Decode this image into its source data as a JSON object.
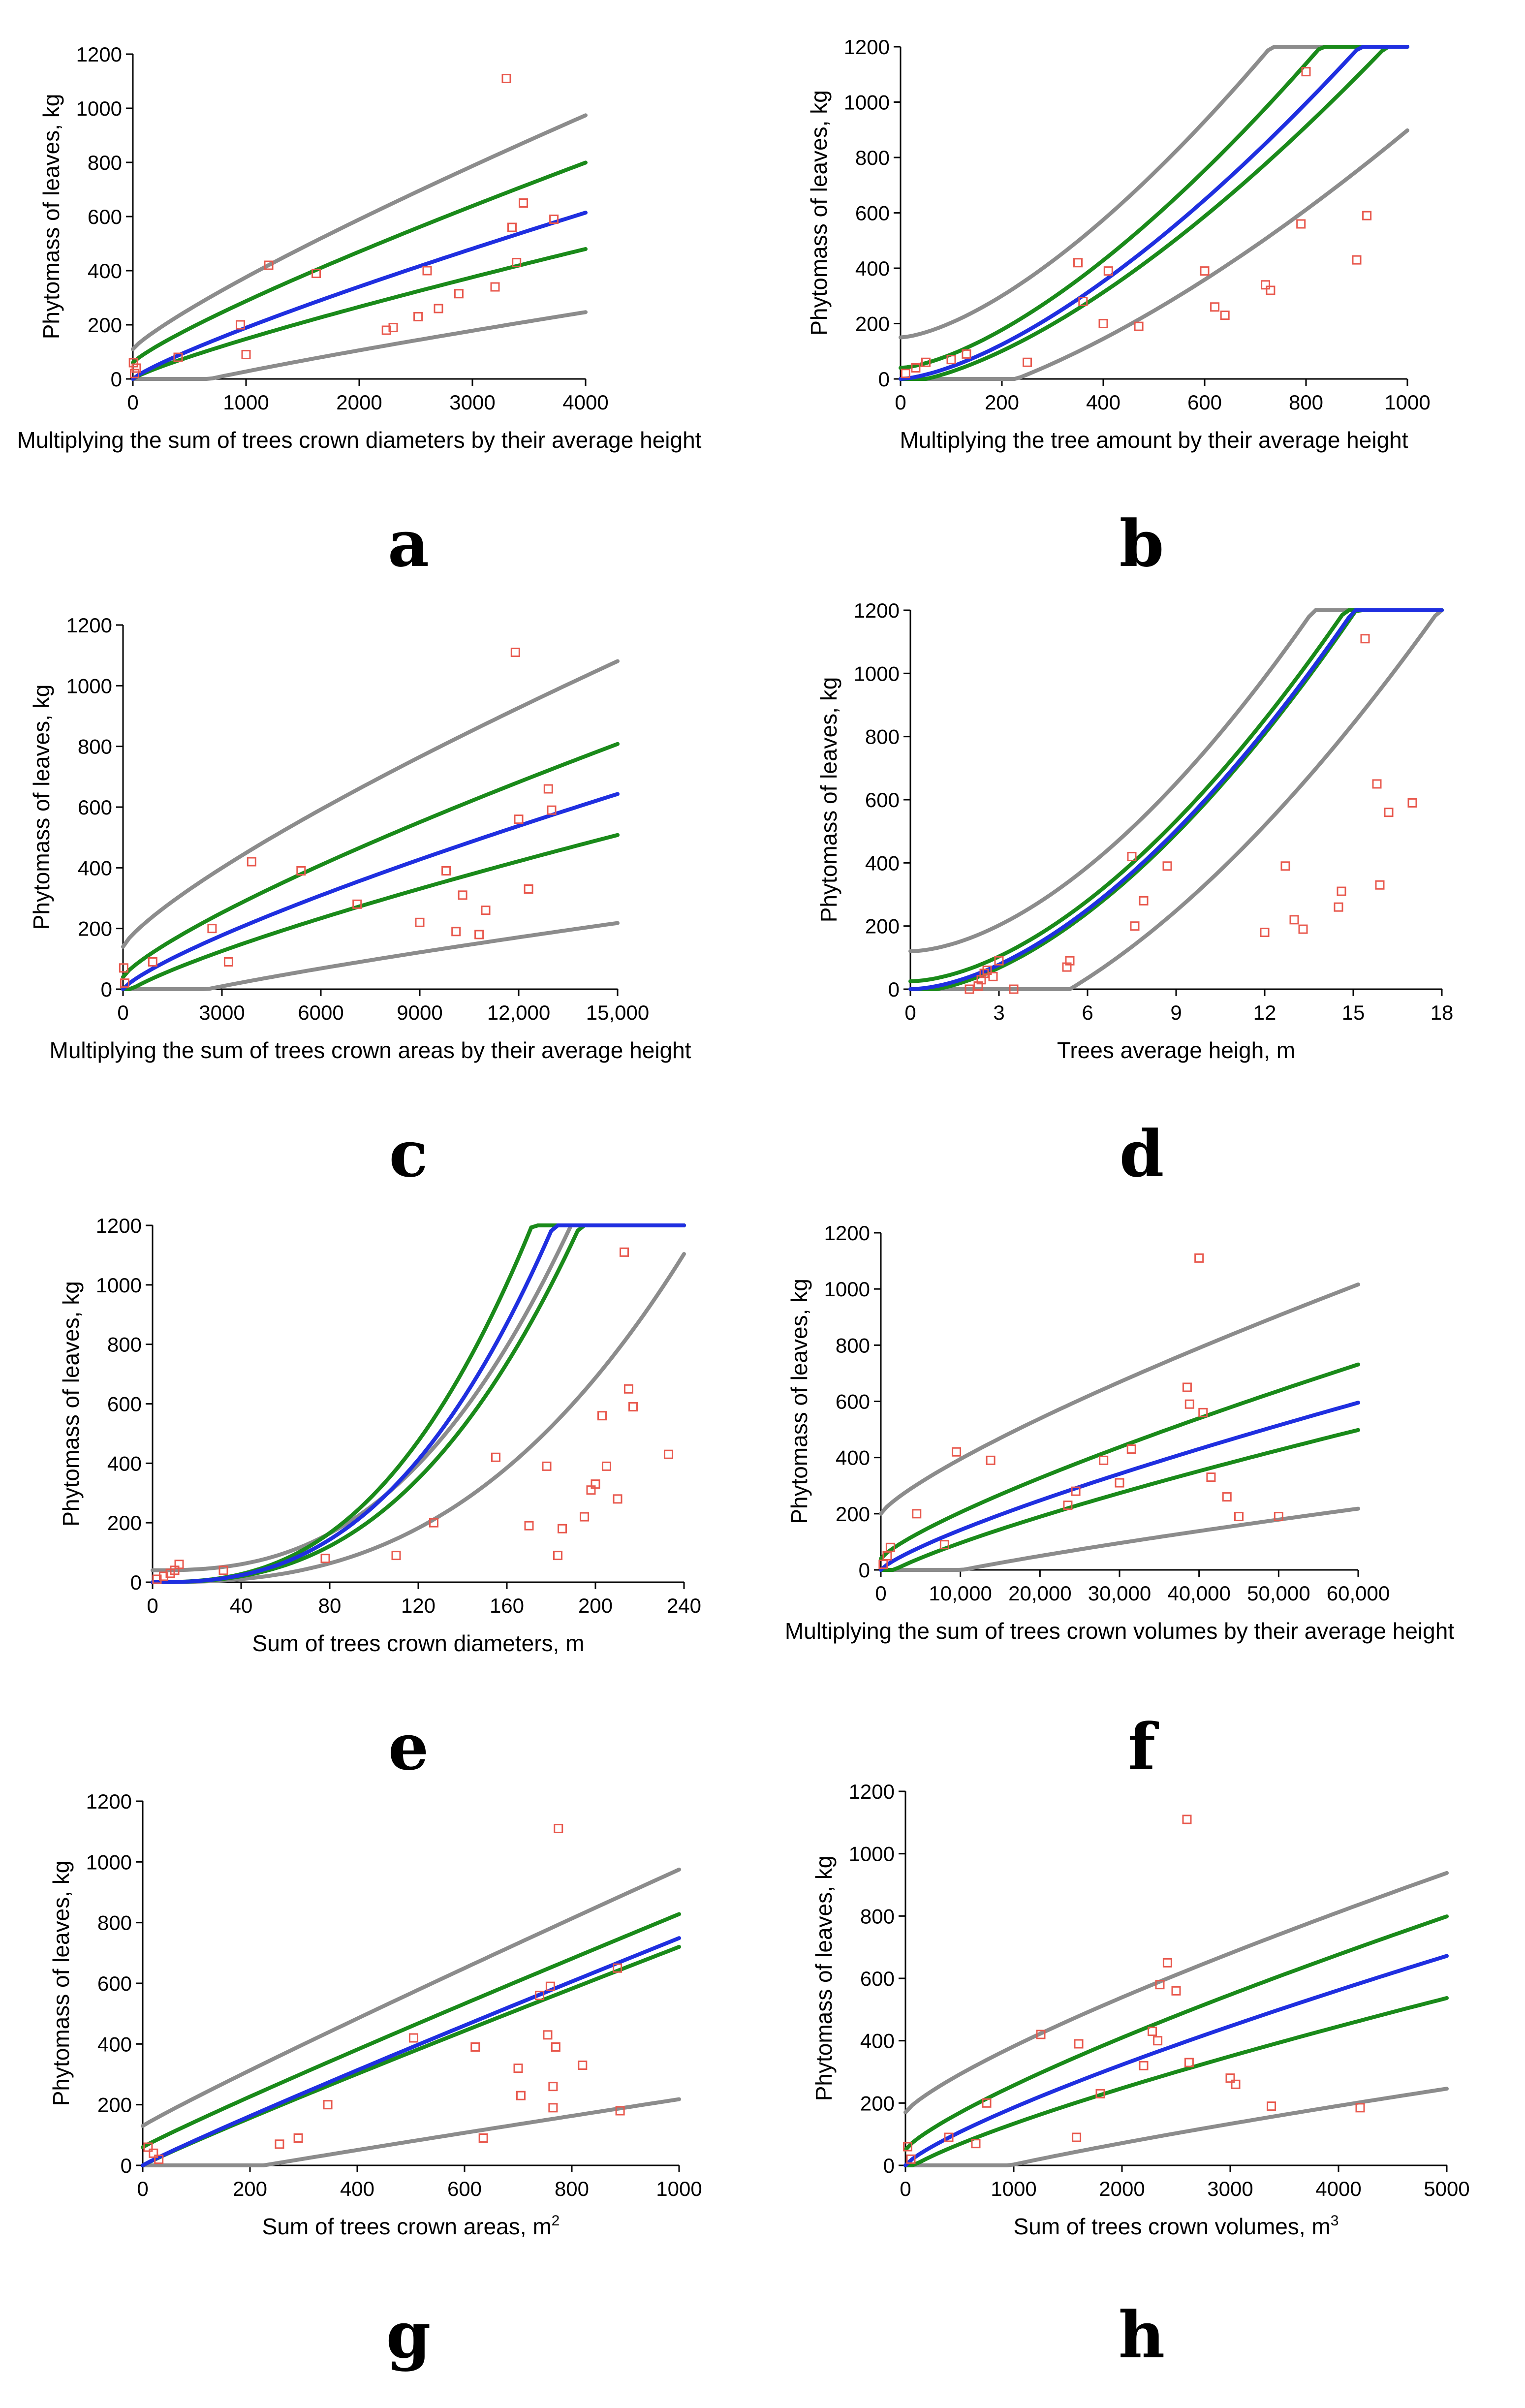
{
  "colors": {
    "points": "#e8584d",
    "fit": "#1f2fe0",
    "confidence": "#1a8a1a",
    "prediction": "#8c8c8c"
  },
  "chart_data": [
    {
      "panel": "a",
      "type": "scatter",
      "ylabel": "Phytomass of leaves, kg",
      "xlabel": "Multiplying the sum of trees crown diameters by their average height",
      "xlim": [
        0,
        4000
      ],
      "ylim": [
        0,
        1200
      ],
      "xticks": [
        0,
        1000,
        2000,
        3000,
        4000
      ],
      "xtick_labels": [
        "0",
        "1000",
        "2000",
        "3000",
        "4000"
      ],
      "yticks": [
        0,
        200,
        400,
        600,
        800,
        1000,
        1200
      ],
      "ytick_labels": [
        "0",
        "200",
        "400",
        "600",
        "800",
        "1000",
        "1200"
      ],
      "curves": {
        "fit": [
          0,
          0.64
        ],
        "conf": [
          [
            60,
            0.77
          ],
          [
            0,
            0.5
          ]
        ],
        "pred": [
          [
            110,
            0.9
          ],
          [
            -70,
            0.33
          ]
        ]
      },
      "x": [
        5,
        15,
        30,
        400,
        950,
        1000,
        1200,
        1620,
        2240,
        2300,
        2520,
        2600,
        2700,
        2880,
        3200,
        3300,
        3350,
        3390,
        3450,
        3720
      ],
      "y": [
        60,
        20,
        40,
        80,
        200,
        90,
        420,
        390,
        180,
        190,
        230,
        400,
        260,
        315,
        340,
        1110,
        560,
        430,
        650,
        590
      ]
    },
    {
      "panel": "b",
      "type": "scatter",
      "ylabel": "Phytomass of leaves, kg",
      "xlabel": "Multiplying the  tree amount by their average height",
      "xlim": [
        0,
        1000
      ],
      "ylim": [
        0,
        1200
      ],
      "xticks": [
        0,
        200,
        400,
        600,
        800,
        1000
      ],
      "xtick_labels": [
        "0",
        "200",
        "400",
        "600",
        "800",
        "1000"
      ],
      "yticks": [
        0,
        200,
        400,
        600,
        800,
        1000,
        1200
      ],
      "ytick_labels": [
        "0",
        "200",
        "400",
        "600",
        "800",
        "1000",
        "1200"
      ],
      "curves": {
        "fit": [
          0,
          1.45
        ],
        "conf": [
          [
            40,
            1.6
          ],
          [
            -15,
            1.35
          ]
        ],
        "pred": [
          [
            150,
            1.75
          ],
          [
            -110,
            1.05
          ]
        ]
      },
      "x": [
        10,
        30,
        50,
        100,
        130,
        250,
        350,
        360,
        400,
        410,
        470,
        600,
        620,
        640,
        720,
        730,
        800,
        790,
        900,
        920
      ],
      "y": [
        20,
        40,
        60,
        70,
        90,
        60,
        420,
        280,
        200,
        390,
        190,
        390,
        260,
        230,
        340,
        320,
        1110,
        560,
        430,
        590
      ]
    },
    {
      "panel": "c",
      "type": "scatter",
      "ylabel": "Phytomass of leaves, kg",
      "xlabel": "Multiplying the sum of trees crown areas by their average height",
      "xlim": [
        0,
        15000
      ],
      "ylim": [
        0,
        1200
      ],
      "xticks": [
        0,
        3000,
        6000,
        9000,
        12000,
        15000
      ],
      "xtick_labels": [
        "0",
        "3000",
        "6000",
        "9000",
        "12,000",
        "15,000"
      ],
      "yticks": [
        0,
        200,
        400,
        600,
        800,
        1000,
        1200
      ],
      "ytick_labels": [
        "0",
        "200",
        "400",
        "600",
        "800",
        "1000",
        "1200"
      ],
      "curves": {
        "fit": [
          0,
          0.67
        ],
        "conf": [
          [
            40,
            0.8
          ],
          [
            -20,
            0.55
          ]
        ],
        "pred": [
          [
            140,
            0.98
          ],
          [
            -70,
            0.3
          ]
        ]
      },
      "x": [
        20,
        50,
        900,
        2700,
        3200,
        3900,
        5400,
        7100,
        9000,
        9800,
        10100,
        10300,
        10800,
        11000,
        11900,
        12000,
        12300,
        12900,
        13000
      ],
      "y": [
        70,
        20,
        90,
        200,
        90,
        420,
        390,
        280,
        220,
        390,
        190,
        310,
        180,
        260,
        1110,
        560,
        330,
        660,
        590
      ]
    },
    {
      "panel": "d",
      "type": "scatter",
      "ylabel": "Phytomass of leaves, kg",
      "xlabel": "Trees average heigh, m",
      "xlim": [
        0,
        18
      ],
      "ylim": [
        0,
        1200
      ],
      "xticks": [
        0,
        3,
        6,
        9,
        12,
        15,
        18
      ],
      "xtick_labels": [
        "0",
        "3",
        "6",
        "9",
        "12",
        "15",
        "18"
      ],
      "yticks": [
        0,
        200,
        400,
        600,
        800,
        1000,
        1200
      ],
      "ytick_labels": [
        "0",
        "200",
        "400",
        "600",
        "800",
        "1000",
        "1200"
      ],
      "curves": {
        "fit": [
          0,
          1.7
        ],
        "conf": [
          [
            25,
            1.72
          ],
          [
            -10,
            1.7
          ]
        ],
        "pred": [
          [
            120,
            1.8
          ],
          [
            -180,
            1.45
          ]
        ]
      },
      "x": [
        2.0,
        2.3,
        2.4,
        2.5,
        2.6,
        2.8,
        3.0,
        3.5,
        5.3,
        5.4,
        7.5,
        7.6,
        7.9,
        8.7,
        12.0,
        12.7,
        13.0,
        13.3,
        14.5,
        14.6,
        15.4,
        15.8,
        15.9,
        16.2,
        17.0
      ],
      "y": [
        0,
        10,
        30,
        50,
        60,
        40,
        90,
        0,
        70,
        90,
        420,
        200,
        280,
        390,
        180,
        390,
        220,
        190,
        260,
        310,
        1110,
        650,
        330,
        560,
        590
      ]
    },
    {
      "panel": "e",
      "type": "scatter",
      "ylabel": "Phytomass of leaves, kg",
      "xlabel": "Sum of trees crown diameters, m",
      "xlim": [
        0,
        240
      ],
      "ylim": [
        0,
        1200
      ],
      "xticks": [
        0,
        40,
        80,
        120,
        160,
        200,
        240
      ],
      "xtick_labels": [
        "0",
        "40",
        "80",
        "120",
        "160",
        "200",
        "240"
      ],
      "yticks": [
        0,
        200,
        400,
        600,
        800,
        1000,
        1200
      ],
      "ytick_labels": [
        "0",
        "200",
        "400",
        "600",
        "800",
        "1000",
        "1200"
      ],
      "curves": {
        "fit": [
          0,
          2.6
        ],
        "conf": [
          [
            0,
            3.0
          ],
          [
            0,
            2.2
          ]
        ],
        "pred": [
          [
            40,
            2.25
          ],
          [
            0,
            1.15
          ]
        ]
      },
      "x": [
        2,
        5,
        8,
        10,
        12,
        32,
        78,
        110,
        127,
        155,
        170,
        178,
        183,
        185,
        195,
        198,
        200,
        203,
        205,
        210,
        213,
        215,
        217,
        233
      ],
      "y": [
        10,
        20,
        30,
        40,
        60,
        40,
        80,
        90,
        200,
        420,
        190,
        390,
        90,
        180,
        220,
        310,
        330,
        560,
        390,
        280,
        1110,
        650,
        590,
        430
      ]
    },
    {
      "panel": "f",
      "type": "scatter",
      "ylabel": "Phytomass of leaves, kg",
      "xlabel": "Multiplying the sum of trees crown volumes by their average height",
      "xlim": [
        0,
        60000
      ],
      "ylim": [
        0,
        1200
      ],
      "xticks": [
        0,
        10000,
        20000,
        30000,
        40000,
        50000,
        60000
      ],
      "xtick_labels": [
        "0",
        "10,000",
        "20,000",
        "30,000",
        "40,000",
        "50,000",
        "60,000"
      ],
      "yticks": [
        0,
        200,
        400,
        600,
        800,
        1000,
        1200
      ],
      "ytick_labels": [
        "0",
        "200",
        "400",
        "600",
        "800",
        "1000",
        "1200"
      ],
      "curves": {
        "fit": [
          0,
          0.62
        ],
        "conf": [
          [
            40,
            0.72
          ],
          [
            -30,
            0.55
          ]
        ],
        "pred": [
          [
            200,
            0.85
          ],
          [
            -70,
            0.3
          ]
        ]
      },
      "x": [
        300,
        800,
        1200,
        4500,
        8000,
        9500,
        13800,
        23500,
        24500,
        28000,
        30000,
        31500,
        38500,
        38800,
        40000,
        40500,
        41500,
        43500,
        45000,
        50000
      ],
      "y": [
        20,
        50,
        80,
        200,
        90,
        420,
        390,
        230,
        280,
        390,
        310,
        430,
        650,
        590,
        1110,
        560,
        330,
        260,
        190,
        190
      ]
    },
    {
      "panel": "g",
      "type": "scatter",
      "ylabel": "Phytomass of leaves, kg",
      "xlabel": "Sum of trees crown areas, m",
      "xlabel_superscript": "2",
      "xlim": [
        0,
        1000
      ],
      "ylim": [
        0,
        1200
      ],
      "xticks": [
        0,
        200,
        400,
        600,
        800,
        1000
      ],
      "xtick_labels": [
        "0",
        "200",
        "400",
        "600",
        "800",
        "1000"
      ],
      "yticks": [
        0,
        200,
        400,
        600,
        800,
        1000,
        1200
      ],
      "ytick_labels": [
        "0",
        "200",
        "400",
        "600",
        "800",
        "1000",
        "1200"
      ],
      "curves": {
        "fit": [
          0,
          0.78
        ],
        "conf": [
          [
            60,
            0.8
          ],
          [
            0,
            0.75
          ]
        ],
        "pred": [
          [
            130,
            0.88
          ],
          [
            -70,
            0.3
          ]
        ]
      },
      "x": [
        10,
        20,
        30,
        255,
        290,
        345,
        505,
        620,
        635,
        700,
        705,
        740,
        755,
        760,
        765,
        765,
        770,
        775,
        820,
        885,
        890
      ],
      "y": [
        60,
        40,
        20,
        70,
        90,
        200,
        420,
        390,
        90,
        320,
        230,
        560,
        430,
        590,
        260,
        190,
        390,
        1110,
        330,
        650,
        180
      ]
    },
    {
      "panel": "h",
      "type": "scatter",
      "ylabel": "Phytomass of leaves, kg",
      "xlabel": "Sum of trees crown volumes, m",
      "xlabel_superscript": "3",
      "xlim": [
        0,
        5000
      ],
      "ylim": [
        0,
        1200
      ],
      "xticks": [
        0,
        1000,
        2000,
        3000,
        4000,
        5000
      ],
      "xtick_labels": [
        "0",
        "1000",
        "2000",
        "3000",
        "4000",
        "5000"
      ],
      "yticks": [
        0,
        200,
        400,
        600,
        800,
        1000,
        1200
      ],
      "ytick_labels": [
        "0",
        "200",
        "400",
        "600",
        "800",
        "1000",
        "1200"
      ],
      "curves": {
        "fit": [
          0,
          0.7
        ],
        "conf": [
          [
            50,
            0.78
          ],
          [
            -20,
            0.58
          ]
        ],
        "pred": [
          [
            170,
            0.8
          ],
          [
            -90,
            0.35
          ]
        ]
      },
      "x": [
        20,
        50,
        400,
        650,
        750,
        1250,
        1600,
        1580,
        1800,
        2200,
        2280,
        2330,
        2350,
        2420,
        2500,
        2600,
        2620,
        3000,
        3050,
        3380,
        4200
      ],
      "y": [
        60,
        20,
        90,
        70,
        200,
        420,
        390,
        90,
        230,
        320,
        430,
        400,
        580,
        650,
        560,
        1110,
        330,
        280,
        260,
        190,
        185
      ]
    }
  ],
  "panel_labels": [
    "a",
    "b",
    "c",
    "d",
    "e",
    "f",
    "g",
    "h"
  ]
}
